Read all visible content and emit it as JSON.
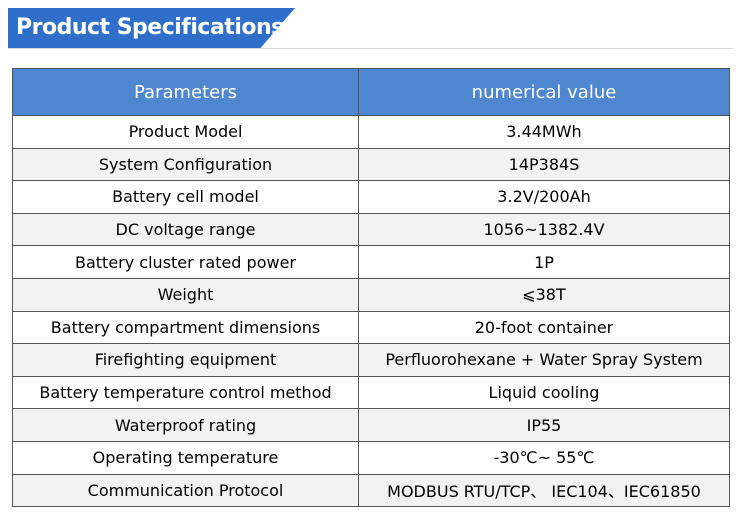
{
  "header": {
    "title": "Product Specifications"
  },
  "table": {
    "columns": [
      "Parameters",
      "numerical value"
    ],
    "rows": [
      [
        "Product Model",
        "3.44MWh"
      ],
      [
        "System Configuration",
        "14P384S"
      ],
      [
        "Battery cell model",
        "3.2V/200Ah"
      ],
      [
        "DC voltage range",
        "1056~1382.4V"
      ],
      [
        "Battery cluster rated power",
        "1P"
      ],
      [
        "Weight",
        "⩽38T"
      ],
      [
        "Battery compartment dimensions",
        "20-foot container"
      ],
      [
        "Firefighting equipment",
        "Perfluorohexane + Water Spray System"
      ],
      [
        "Battery temperature control method",
        "Liquid cooling"
      ],
      [
        "Waterproof rating",
        "IP55"
      ],
      [
        "Operating temperature",
        "-30℃~ 55℃"
      ],
      [
        "Communication Protocol",
        "MODBUS RTU/TCP、 IEC104、IEC61850"
      ]
    ]
  }
}
